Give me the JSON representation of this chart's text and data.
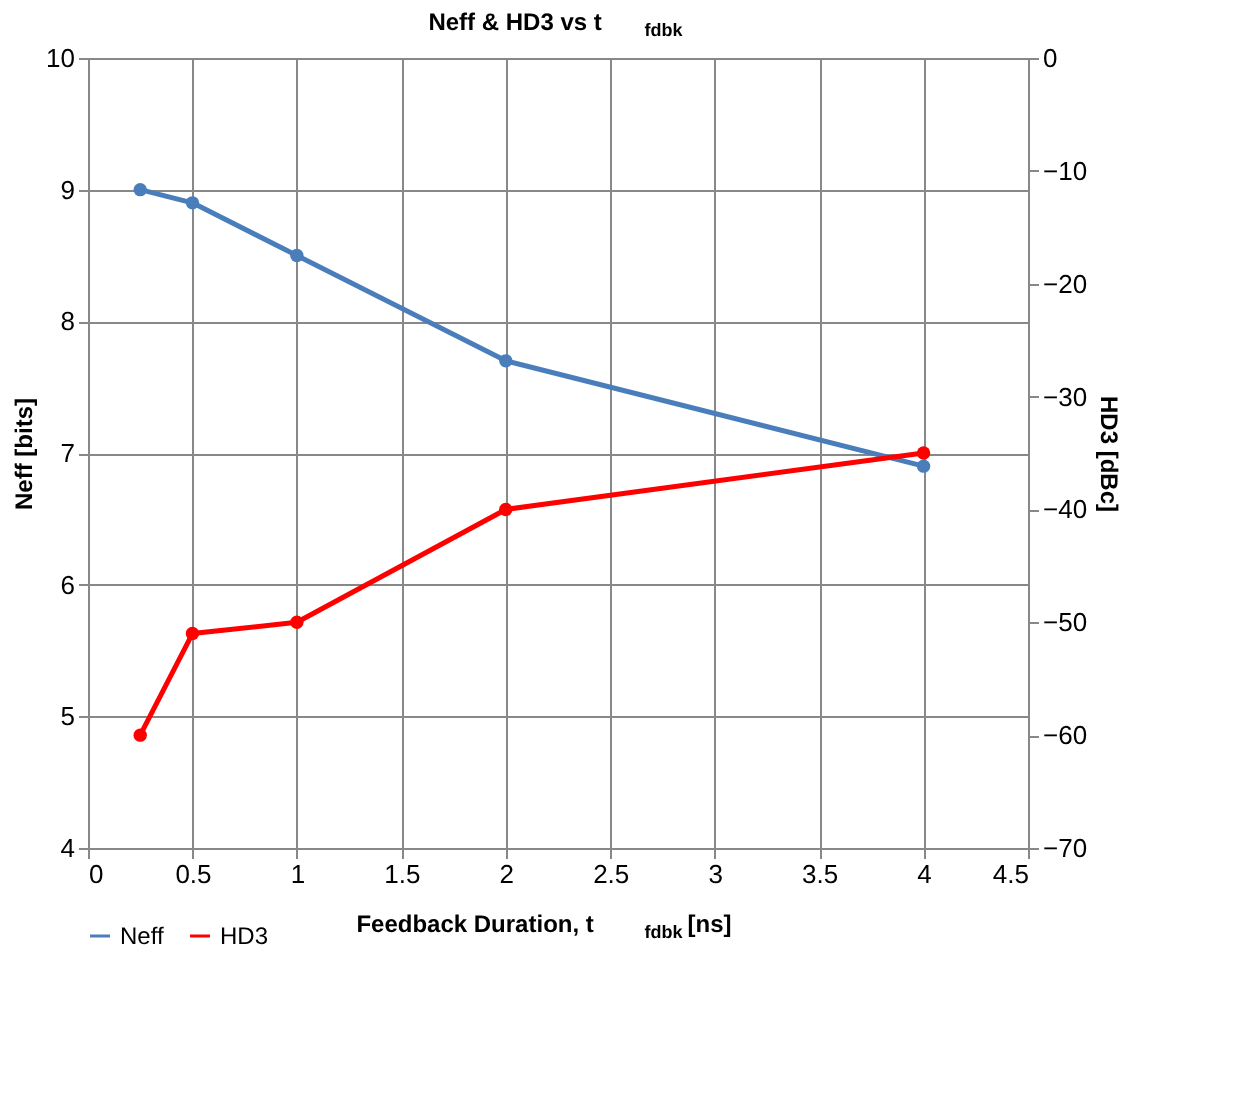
{
  "chart_data": {
    "type": "line",
    "title": "Neff & HD3 vs t$_{fdbk}$",
    "xlabel": "Feedback Duration, t$_{fdbk}$ [ns]",
    "ylabel": "Neff [bits]",
    "y2label": "HD3 [dBc]",
    "x": [
      0.25,
      0.5,
      1,
      2,
      4
    ],
    "series": [
      {
        "name": "Neff",
        "color": "#4a7ebb",
        "values": [
          9.0,
          8.9,
          8.5,
          7.7,
          6.9
        ]
      },
      {
        "name": "HD3",
        "color": "#ff0000",
        "axis": "y2",
        "values": [
          -60,
          -51,
          -50,
          -40,
          -35
        ]
      }
    ],
    "xlim": [
      0,
      4.5
    ],
    "xticks": [
      0,
      0.5,
      1,
      1.5,
      2,
      2.5,
      3,
      3.5,
      4,
      4.5
    ],
    "ylim": [
      4,
      10
    ],
    "yticks": [
      4,
      5,
      6,
      7,
      8,
      9,
      10
    ],
    "y2lim": [
      -70,
      0
    ],
    "y2ticks": [
      -70,
      -60,
      -50,
      -40,
      -30,
      -20,
      -10,
      0
    ],
    "grid": true,
    "legend": "bottom",
    "marker": "circle",
    "line_style": "solid"
  }
}
